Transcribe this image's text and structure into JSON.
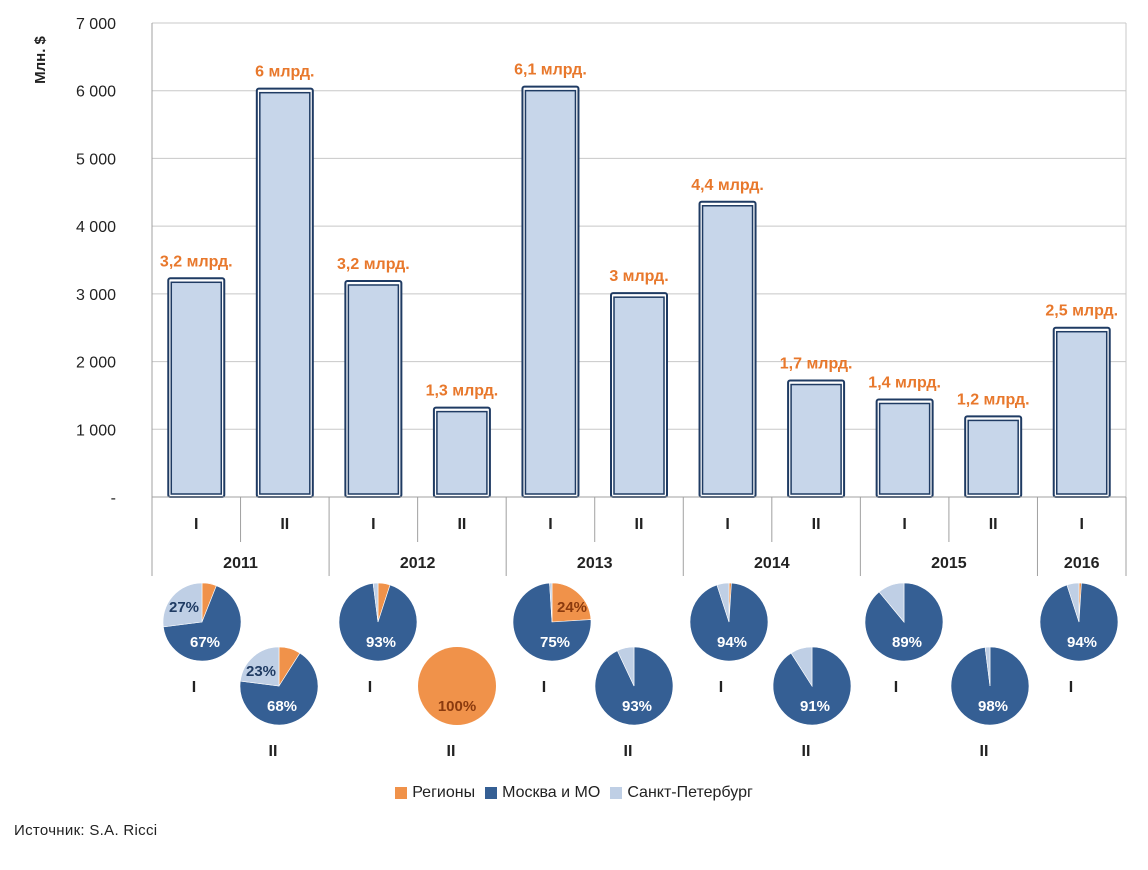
{
  "chart_data": {
    "type": "bar",
    "ylabel": "Млн. $",
    "ylim": [
      0,
      7000
    ],
    "yticks": [
      {
        "value": 0,
        "label": "-"
      },
      {
        "value": 1000,
        "label": "1 000"
      },
      {
        "value": 2000,
        "label": "2 000"
      },
      {
        "value": 3000,
        "label": "3 000"
      },
      {
        "value": 4000,
        "label": "4 000"
      },
      {
        "value": 5000,
        "label": "5 000"
      },
      {
        "value": 6000,
        "label": "6 000"
      },
      {
        "value": 7000,
        "label": "7 000"
      }
    ],
    "grid": true,
    "bars": [
      {
        "year": "2011",
        "half": "I",
        "value": 3230,
        "label": "3,2 млрд."
      },
      {
        "year": "2011",
        "half": "II",
        "value": 6030,
        "label": "6 млрд."
      },
      {
        "year": "2012",
        "half": "I",
        "value": 3190,
        "label": "3,2 млрд."
      },
      {
        "year": "2012",
        "half": "II",
        "value": 1320,
        "label": "1,3 млрд."
      },
      {
        "year": "2013",
        "half": "I",
        "value": 6060,
        "label": "6,1 млрд."
      },
      {
        "year": "2013",
        "half": "II",
        "value": 3010,
        "label": "3 млрд."
      },
      {
        "year": "2014",
        "half": "I",
        "value": 4360,
        "label": "4,4 млрд."
      },
      {
        "year": "2014",
        "half": "II",
        "value": 1720,
        "label": "1,7 млрд."
      },
      {
        "year": "2015",
        "half": "I",
        "value": 1440,
        "label": "1,4 млрд."
      },
      {
        "year": "2015",
        "half": "II",
        "value": 1190,
        "label": "1,2 млрд."
      },
      {
        "year": "2016",
        "half": "I",
        "value": 2500,
        "label": "2,5 млрд."
      }
    ],
    "years": [
      {
        "label": "2011",
        "periods": 2
      },
      {
        "label": "2012",
        "periods": 2
      },
      {
        "label": "2013",
        "periods": 2
      },
      {
        "label": "2014",
        "periods": 2
      },
      {
        "label": "2015",
        "periods": 2
      },
      {
        "label": "2016",
        "periods": 1
      }
    ],
    "pies": [
      {
        "period": "I",
        "regions": 6,
        "moscow": 67,
        "spb": 27,
        "labels": [
          {
            "series": "moscow",
            "text": "67%"
          },
          {
            "series": "spb",
            "text": "27%"
          }
        ]
      },
      {
        "period": "II",
        "regions": 9,
        "moscow": 68,
        "spb": 23,
        "labels": [
          {
            "series": "moscow",
            "text": "68%"
          },
          {
            "series": "spb",
            "text": "23%"
          }
        ]
      },
      {
        "period": "I",
        "regions": 5,
        "moscow": 93,
        "spb": 2,
        "labels": [
          {
            "series": "moscow",
            "text": "93%"
          }
        ]
      },
      {
        "period": "II",
        "regions": 100,
        "moscow": 0,
        "spb": 0,
        "labels": [
          {
            "series": "regions",
            "text": "100%"
          }
        ]
      },
      {
        "period": "I",
        "regions": 24,
        "moscow": 75,
        "spb": 1,
        "labels": [
          {
            "series": "moscow",
            "text": "75%"
          },
          {
            "series": "regions",
            "text": "24%"
          }
        ]
      },
      {
        "period": "II",
        "regions": 0,
        "moscow": 93,
        "spb": 7,
        "labels": [
          {
            "series": "moscow",
            "text": "93%"
          }
        ]
      },
      {
        "period": "I",
        "regions": 1,
        "moscow": 94,
        "spb": 5,
        "labels": [
          {
            "series": "moscow",
            "text": "94%"
          }
        ]
      },
      {
        "period": "II",
        "regions": 0,
        "moscow": 91,
        "spb": 9,
        "labels": [
          {
            "series": "moscow",
            "text": "91%"
          }
        ]
      },
      {
        "period": "I",
        "regions": 0,
        "moscow": 89,
        "spb": 11,
        "labels": [
          {
            "series": "moscow",
            "text": "89%"
          }
        ]
      },
      {
        "period": "II",
        "regions": 0,
        "moscow": 98,
        "spb": 2,
        "labels": [
          {
            "series": "moscow",
            "text": "98%"
          }
        ]
      },
      {
        "period": "I",
        "regions": 1,
        "moscow": 94,
        "spb": 5,
        "labels": [
          {
            "series": "moscow",
            "text": "94%"
          }
        ]
      }
    ],
    "series": [
      {
        "key": "regions",
        "name": "Регионы",
        "color": "#f0924a"
      },
      {
        "key": "moscow",
        "name": "Москва и МО",
        "color": "#355f94"
      },
      {
        "key": "spb",
        "name": "Санкт-Петербург",
        "color": "#bfcfe5"
      }
    ],
    "colors": {
      "bar_fill": "#c7d6ea",
      "bar_border": "#1f3b63",
      "value_label": "#e8782c",
      "grid": "#c8c8c8"
    }
  },
  "source": "Источник: S.A. Ricci"
}
